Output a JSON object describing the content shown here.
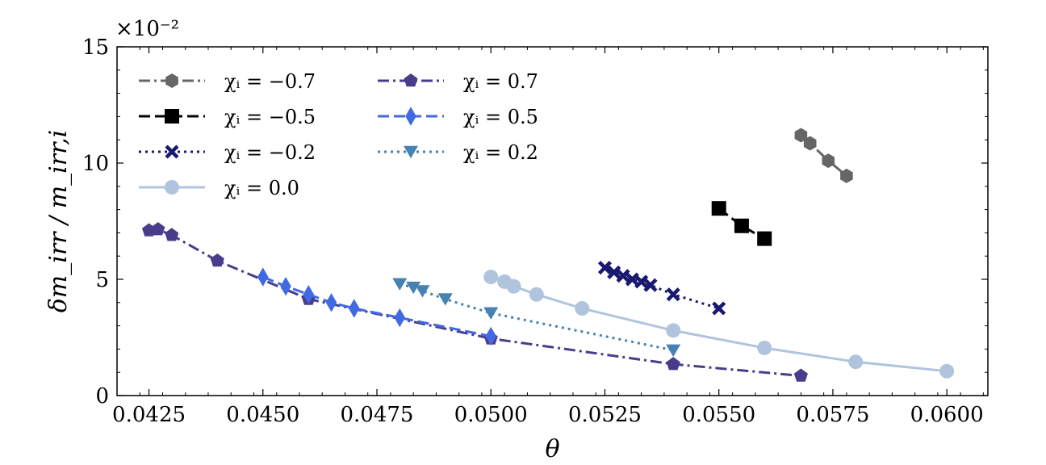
{
  "chart_data": {
    "type": "line",
    "title": "",
    "xlabel": "θ",
    "ylabel": "δm_irr / m_irr,i",
    "y_multiplier": "×10⁻²",
    "xlim": [
      0.0418,
      0.0609
    ],
    "ylim": [
      0,
      15
    ],
    "x_ticks": [
      0.0425,
      0.045,
      0.0475,
      0.05,
      0.0525,
      0.055,
      0.0575,
      0.06
    ],
    "x_tick_labels": [
      "0.0425",
      "0.0450",
      "0.0475",
      "0.0500",
      "0.0525",
      "0.0550",
      "0.0575",
      "0.0600"
    ],
    "y_ticks": [
      0,
      5,
      10,
      15
    ],
    "y_tick_labels": [
      "0",
      "5",
      "10",
      "15"
    ],
    "grid": false,
    "legend_position": "top-left",
    "series": [
      {
        "name": "χi = −0.7",
        "legend_label": "χᵢ = −0.7",
        "color": "#666666",
        "linestyle": "dashdot",
        "marker": "hexagon",
        "x": [
          0.0568,
          0.057,
          0.0574,
          0.0578
        ],
        "y": [
          11.2,
          10.85,
          10.1,
          9.45
        ]
      },
      {
        "name": "χi = −0.5",
        "legend_label": "χᵢ = −0.5",
        "color": "#000000",
        "linestyle": "dashed",
        "marker": "square",
        "x": [
          0.055,
          0.0555,
          0.056
        ],
        "y": [
          8.05,
          7.3,
          6.75
        ]
      },
      {
        "name": "χi = −0.2",
        "legend_label": "χᵢ = −0.2",
        "color": "#191970",
        "linestyle": "dotted",
        "marker": "x",
        "x": [
          0.0525,
          0.0527,
          0.0529,
          0.0531,
          0.0533,
          0.0535,
          0.054,
          0.055
        ],
        "y": [
          5.5,
          5.3,
          5.15,
          5.0,
          4.9,
          4.75,
          4.35,
          3.75
        ]
      },
      {
        "name": "χi = 0.0",
        "legend_label": "χᵢ = 0.0",
        "color": "#b0c4de",
        "linestyle": "solid",
        "marker": "circle",
        "x": [
          0.05,
          0.0503,
          0.0505,
          0.051,
          0.052,
          0.054,
          0.056,
          0.058,
          0.06
        ],
        "y": [
          5.1,
          4.9,
          4.7,
          4.35,
          3.75,
          2.8,
          2.05,
          1.45,
          1.05
        ]
      },
      {
        "name": "χi = 0.7",
        "legend_label": "χᵢ = 0.7",
        "color": "#483d8b",
        "linestyle": "dashdot",
        "marker": "pentagon",
        "x": [
          0.0425,
          0.0427,
          0.043,
          0.044,
          0.046,
          0.05,
          0.054,
          0.0568
        ],
        "y": [
          7.1,
          7.15,
          6.9,
          5.8,
          4.15,
          2.45,
          1.35,
          0.85
        ]
      },
      {
        "name": "χi = 0.5",
        "legend_label": "χᵢ = 0.5",
        "color": "#4169e1",
        "linestyle": "dashed",
        "marker": "diamond",
        "x": [
          0.045,
          0.0455,
          0.046,
          0.0465,
          0.047,
          0.048,
          0.05
        ],
        "y": [
          5.1,
          4.7,
          4.35,
          4.0,
          3.75,
          3.35,
          2.55
        ]
      },
      {
        "name": "χi = 0.2",
        "legend_label": "χᵢ = 0.2",
        "color": "#4682b4",
        "linestyle": "dotted",
        "marker": "triangle-down",
        "x": [
          0.048,
          0.0483,
          0.0485,
          0.049,
          0.05,
          0.054
        ],
        "y": [
          4.8,
          4.65,
          4.5,
          4.15,
          3.55,
          1.95
        ]
      }
    ]
  }
}
